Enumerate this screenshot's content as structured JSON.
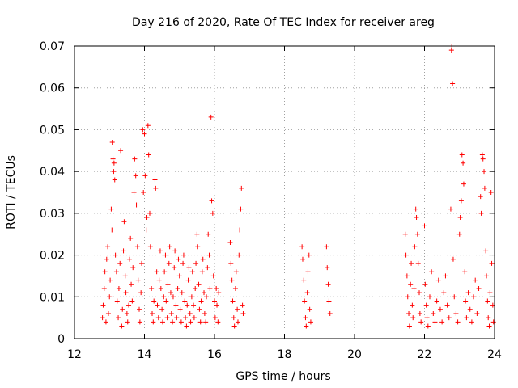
{
  "chart_data": {
    "type": "scatter",
    "title": "Day 216 of 2020, Rate Of TEC Index for receiver areg",
    "xlabel": "GPS time / hours",
    "ylabel": "ROTI / TECUs",
    "xlim": [
      12,
      24
    ],
    "ylim": [
      0,
      0.07
    ],
    "xticks": [
      "12",
      "14",
      "16",
      "18",
      "20",
      "22",
      "24"
    ],
    "yticks": [
      "0",
      "0.01",
      "0.02",
      "0.03",
      "0.04",
      "0.05",
      "0.06",
      "0.07"
    ],
    "grid": true,
    "marker": "+",
    "color": "#ff0000",
    "series": [
      {
        "points": [
          [
            12.8,
            0.005
          ],
          [
            12.82,
            0.008
          ],
          [
            12.85,
            0.012
          ],
          [
            12.87,
            0.016
          ],
          [
            12.9,
            0.004
          ],
          [
            12.92,
            0.019
          ],
          [
            12.95,
            0.022
          ],
          [
            12.97,
            0.006
          ],
          [
            13.0,
            0.01
          ],
          [
            13.02,
            0.014
          ],
          [
            13.05,
            0.031
          ],
          [
            13.07,
            0.026
          ],
          [
            13.08,
            0.047
          ],
          [
            13.1,
            0.043
          ],
          [
            13.12,
            0.04
          ],
          [
            13.13,
            0.042
          ],
          [
            13.15,
            0.038
          ],
          [
            13.17,
            0.02
          ],
          [
            13.2,
            0.016
          ],
          [
            13.22,
            0.009
          ],
          [
            13.25,
            0.005
          ],
          [
            13.27,
            0.012
          ],
          [
            13.3,
            0.018
          ],
          [
            13.32,
            0.045
          ],
          [
            13.35,
            0.003
          ],
          [
            13.37,
            0.007
          ],
          [
            13.4,
            0.021
          ],
          [
            13.42,
            0.028
          ],
          [
            13.45,
            0.015
          ],
          [
            13.47,
            0.011
          ],
          [
            13.5,
            0.006
          ],
          [
            13.52,
            0.004
          ],
          [
            13.55,
            0.008
          ],
          [
            13.57,
            0.019
          ],
          [
            13.6,
            0.024
          ],
          [
            13.62,
            0.013
          ],
          [
            13.65,
            0.009
          ],
          [
            13.67,
            0.017
          ],
          [
            13.7,
            0.035
          ],
          [
            13.72,
            0.043
          ],
          [
            13.75,
            0.039
          ],
          [
            13.77,
            0.032
          ],
          [
            13.8,
            0.022
          ],
          [
            13.82,
            0.014
          ],
          [
            13.85,
            0.007
          ],
          [
            13.87,
            0.004
          ],
          [
            13.9,
            0.011
          ],
          [
            13.92,
            0.018
          ],
          [
            13.95,
            0.05
          ],
          [
            13.97,
            0.035
          ],
          [
            14.0,
            0.049
          ],
          [
            14.02,
            0.039
          ],
          [
            14.05,
            0.026
          ],
          [
            14.07,
            0.029
          ],
          [
            14.1,
            0.051
          ],
          [
            14.12,
            0.044
          ],
          [
            14.15,
            0.03
          ],
          [
            14.17,
            0.022
          ],
          [
            14.2,
            0.012
          ],
          [
            14.22,
            0.006
          ],
          [
            14.25,
            0.004
          ],
          [
            14.27,
            0.009
          ],
          [
            14.3,
            0.038
          ],
          [
            14.32,
            0.036
          ],
          [
            14.35,
            0.016
          ],
          [
            14.37,
            0.008
          ],
          [
            14.4,
            0.005
          ],
          [
            14.42,
            0.014
          ],
          [
            14.45,
            0.021
          ],
          [
            14.47,
            0.012
          ],
          [
            14.5,
            0.007
          ],
          [
            14.52,
            0.004
          ],
          [
            14.55,
            0.01
          ],
          [
            14.57,
            0.016
          ],
          [
            14.6,
            0.02
          ],
          [
            14.62,
            0.009
          ],
          [
            14.65,
            0.005
          ],
          [
            14.67,
            0.013
          ],
          [
            14.7,
            0.018
          ],
          [
            14.72,
            0.022
          ],
          [
            14.75,
            0.011
          ],
          [
            14.77,
            0.006
          ],
          [
            14.8,
            0.004
          ],
          [
            14.82,
            0.01
          ],
          [
            14.85,
            0.017
          ],
          [
            14.87,
            0.021
          ],
          [
            14.9,
            0.008
          ],
          [
            14.92,
            0.005
          ],
          [
            14.95,
            0.012
          ],
          [
            14.97,
            0.019
          ],
          [
            15.0,
            0.015
          ],
          [
            15.02,
            0.007
          ],
          [
            15.05,
            0.004
          ],
          [
            15.07,
            0.011
          ],
          [
            15.1,
            0.018
          ],
          [
            15.12,
            0.02
          ],
          [
            15.15,
            0.009
          ],
          [
            15.17,
            0.005
          ],
          [
            15.2,
            0.003
          ],
          [
            15.22,
            0.008
          ],
          [
            15.25,
            0.014
          ],
          [
            15.27,
            0.017
          ],
          [
            15.3,
            0.006
          ],
          [
            15.32,
            0.004
          ],
          [
            15.35,
            0.01
          ],
          [
            15.37,
            0.016
          ],
          [
            15.4,
            0.008
          ],
          [
            15.42,
            0.005
          ],
          [
            15.45,
            0.012
          ],
          [
            15.47,
            0.018
          ],
          [
            15.5,
            0.025
          ],
          [
            15.52,
            0.022
          ],
          [
            15.55,
            0.013
          ],
          [
            15.57,
            0.007
          ],
          [
            15.6,
            0.004
          ],
          [
            15.62,
            0.009
          ],
          [
            15.65,
            0.016
          ],
          [
            15.67,
            0.019
          ],
          [
            15.7,
            0.011
          ],
          [
            15.72,
            0.006
          ],
          [
            15.75,
            0.004
          ],
          [
            15.77,
            0.01
          ],
          [
            15.8,
            0.017
          ],
          [
            15.82,
            0.025
          ],
          [
            15.85,
            0.02
          ],
          [
            15.87,
            0.012
          ],
          [
            15.9,
            0.053
          ],
          [
            15.92,
            0.033
          ],
          [
            15.95,
            0.03
          ],
          [
            15.97,
            0.015
          ],
          [
            16.0,
            0.009
          ],
          [
            16.02,
            0.005
          ],
          [
            16.05,
            0.012
          ],
          [
            16.07,
            0.008
          ],
          [
            16.1,
            0.004
          ],
          [
            16.12,
            0.011
          ],
          [
            16.45,
            0.023
          ],
          [
            16.47,
            0.018
          ],
          [
            16.5,
            0.014
          ],
          [
            16.52,
            0.009
          ],
          [
            16.55,
            0.005
          ],
          [
            16.57,
            0.003
          ],
          [
            16.6,
            0.012
          ],
          [
            16.62,
            0.016
          ],
          [
            16.65,
            0.007
          ],
          [
            16.67,
            0.004
          ],
          [
            16.7,
            0.02
          ],
          [
            16.72,
            0.026
          ],
          [
            16.75,
            0.031
          ],
          [
            16.77,
            0.036
          ],
          [
            16.8,
            0.008
          ],
          [
            16.82,
            0.006
          ],
          [
            18.5,
            0.022
          ],
          [
            18.52,
            0.019
          ],
          [
            18.55,
            0.014
          ],
          [
            18.57,
            0.009
          ],
          [
            18.6,
            0.005
          ],
          [
            18.62,
            0.003
          ],
          [
            18.65,
            0.011
          ],
          [
            18.67,
            0.016
          ],
          [
            18.7,
            0.02
          ],
          [
            18.72,
            0.007
          ],
          [
            18.75,
            0.004
          ],
          [
            19.2,
            0.022
          ],
          [
            19.22,
            0.017
          ],
          [
            19.25,
            0.013
          ],
          [
            19.27,
            0.009
          ],
          [
            19.3,
            0.006
          ],
          [
            21.45,
            0.025
          ],
          [
            21.47,
            0.02
          ],
          [
            21.5,
            0.015
          ],
          [
            21.52,
            0.01
          ],
          [
            21.55,
            0.006
          ],
          [
            21.57,
            0.003
          ],
          [
            21.6,
            0.013
          ],
          [
            21.62,
            0.018
          ],
          [
            21.65,
            0.008
          ],
          [
            21.67,
            0.005
          ],
          [
            21.7,
            0.012
          ],
          [
            21.72,
            0.022
          ],
          [
            21.75,
            0.031
          ],
          [
            21.77,
            0.029
          ],
          [
            21.8,
            0.025
          ],
          [
            21.82,
            0.018
          ],
          [
            21.85,
            0.011
          ],
          [
            21.87,
            0.006
          ],
          [
            21.9,
            0.004
          ],
          [
            22.0,
            0.027
          ],
          [
            22.02,
            0.013
          ],
          [
            22.05,
            0.008
          ],
          [
            22.07,
            0.005
          ],
          [
            22.1,
            0.003
          ],
          [
            22.15,
            0.01
          ],
          [
            22.2,
            0.016
          ],
          [
            22.25,
            0.006
          ],
          [
            22.3,
            0.004
          ],
          [
            22.35,
            0.009
          ],
          [
            22.4,
            0.014
          ],
          [
            22.45,
            0.007
          ],
          [
            22.5,
            0.004
          ],
          [
            22.55,
            0.011
          ],
          [
            22.6,
            0.015
          ],
          [
            22.65,
            0.008
          ],
          [
            22.7,
            0.005
          ],
          [
            22.75,
            0.031
          ],
          [
            22.77,
            0.069
          ],
          [
            22.78,
            0.07
          ],
          [
            22.8,
            0.061
          ],
          [
            22.82,
            0.019
          ],
          [
            22.85,
            0.01
          ],
          [
            22.9,
            0.006
          ],
          [
            22.95,
            0.004
          ],
          [
            23.0,
            0.025
          ],
          [
            23.02,
            0.029
          ],
          [
            23.05,
            0.033
          ],
          [
            23.07,
            0.044
          ],
          [
            23.1,
            0.042
          ],
          [
            23.12,
            0.037
          ],
          [
            23.15,
            0.016
          ],
          [
            23.17,
            0.009
          ],
          [
            23.2,
            0.005
          ],
          [
            23.25,
            0.011
          ],
          [
            23.3,
            0.007
          ],
          [
            23.35,
            0.004
          ],
          [
            23.4,
            0.01
          ],
          [
            23.45,
            0.014
          ],
          [
            23.5,
            0.006
          ],
          [
            23.55,
            0.012
          ],
          [
            23.6,
            0.034
          ],
          [
            23.62,
            0.03
          ],
          [
            23.65,
            0.044
          ],
          [
            23.67,
            0.043
          ],
          [
            23.7,
            0.04
          ],
          [
            23.72,
            0.036
          ],
          [
            23.75,
            0.021
          ],
          [
            23.77,
            0.015
          ],
          [
            23.8,
            0.009
          ],
          [
            23.82,
            0.005
          ],
          [
            23.85,
            0.003
          ],
          [
            23.87,
            0.011
          ],
          [
            23.9,
            0.035
          ],
          [
            23.92,
            0.018
          ],
          [
            23.95,
            0.008
          ],
          [
            23.97,
            0.004
          ]
        ]
      }
    ]
  }
}
